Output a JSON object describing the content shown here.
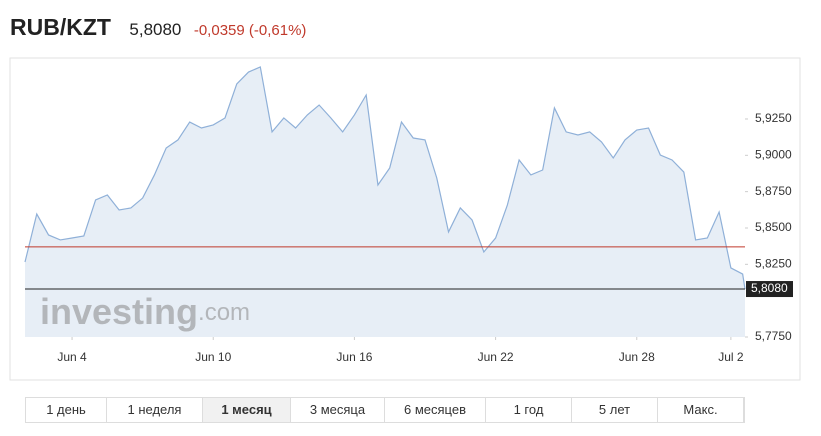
{
  "header": {
    "title": "RUB/KZT",
    "change": "-0,0359 (-0,61%)"
  },
  "chart_data": {
    "type": "area",
    "color": "#8fb0d8",
    "fill": "#e3ebf4",
    "x": [
      0,
      0.5,
      1,
      1.5,
      2,
      2.5,
      3,
      3.5,
      4,
      4.5,
      5,
      5.5,
      6,
      6.5,
      7,
      7.5,
      8,
      8.5,
      9,
      9.5,
      10,
      10.5,
      11,
      11.5,
      12,
      12.5,
      13,
      13.5,
      14,
      14.5,
      15,
      15.5,
      16,
      16.5,
      17,
      17.5,
      18,
      18.5,
      19,
      19.5,
      20,
      20.5,
      21,
      21.5,
      22,
      22.5,
      23,
      23.5,
      24,
      24.5,
      25,
      25.5,
      26,
      26.5,
      27,
      27.5,
      28,
      28.5,
      29,
      29.5,
      30,
      30.5,
      30.6
    ],
    "values": [
      5.8266,
      5.8596,
      5.8452,
      5.8418,
      5.8431,
      5.8445,
      5.8693,
      5.8727,
      5.8624,
      5.8638,
      5.8706,
      5.8865,
      5.905,
      5.9106,
      5.9229,
      5.9188,
      5.9209,
      5.9257,
      5.9491,
      5.9573,
      5.9608,
      5.9161,
      5.9257,
      5.9188,
      5.9278,
      5.9346,
      5.9257,
      5.9161,
      5.9278,
      5.9415,
      5.8796,
      5.8913,
      5.9229,
      5.9119,
      5.9106,
      5.8844,
      5.8473,
      5.8638,
      5.8555,
      5.8335,
      5.8431,
      5.8658,
      5.8968,
      5.8865,
      5.8899,
      5.9326,
      5.9161,
      5.914,
      5.9161,
      5.9092,
      5.8982,
      5.9106,
      5.9174,
      5.9188,
      5.9002,
      5.8968,
      5.8885,
      5.8418,
      5.8431,
      5.861,
      5.8225,
      5.8183,
      5.808
    ],
    "xlim": [
      0,
      30.6
    ],
    "xticks": [
      {
        "value": 2,
        "label": "Jun 4"
      },
      {
        "value": 8,
        "label": "Jun 10"
      },
      {
        "value": 14,
        "label": "Jun 16"
      },
      {
        "value": 20,
        "label": "Jun 22"
      },
      {
        "value": 26,
        "label": "Jun 28"
      },
      {
        "value": 30,
        "label": "Jul 2"
      }
    ],
    "ylim": [
      5.775,
      5.9642
    ],
    "yticks": [
      {
        "value": 5.775,
        "label": "5,7750"
      },
      {
        "value": 5.825,
        "label": "5,8250"
      },
      {
        "value": 5.85,
        "label": "5,8500"
      },
      {
        "value": 5.875,
        "label": "5,8750"
      },
      {
        "value": 5.9,
        "label": "5,9000"
      },
      {
        "value": 5.925,
        "label": "5,9250"
      }
    ],
    "reference_line": {
      "value": 5.837,
      "color": "#c0392b"
    },
    "last": {
      "value": 5.808,
      "label": "5,8080",
      "color": "#222222"
    },
    "watermark": [
      "investing",
      ".com"
    ]
  },
  "ranges": [
    "1 день",
    "1 неделя",
    "1 месяц",
    "3 месяца",
    "6 месяцев",
    "1 год",
    "5 лет",
    "Макс."
  ],
  "selected_range": 2
}
